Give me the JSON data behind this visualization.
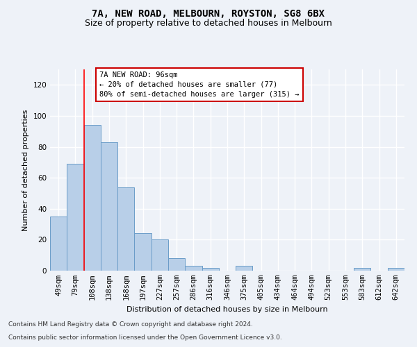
{
  "title": "7A, NEW ROAD, MELBOURN, ROYSTON, SG8 6BX",
  "subtitle": "Size of property relative to detached houses in Melbourn",
  "xlabel": "Distribution of detached houses by size in Melbourn",
  "ylabel": "Number of detached properties",
  "categories": [
    "49sqm",
    "79sqm",
    "108sqm",
    "138sqm",
    "168sqm",
    "197sqm",
    "227sqm",
    "257sqm",
    "286sqm",
    "316sqm",
    "346sqm",
    "375sqm",
    "405sqm",
    "434sqm",
    "464sqm",
    "494sqm",
    "523sqm",
    "553sqm",
    "583sqm",
    "612sqm",
    "642sqm"
  ],
  "values": [
    35,
    69,
    94,
    83,
    54,
    24,
    20,
    8,
    3,
    2,
    0,
    3,
    0,
    0,
    0,
    0,
    0,
    0,
    2,
    0,
    2
  ],
  "bar_color": "#b8cfe8",
  "bar_edge_color": "#6a9cc8",
  "ylim": [
    0,
    130
  ],
  "yticks": [
    0,
    20,
    40,
    60,
    80,
    100,
    120
  ],
  "red_line_x": 1.5,
  "annotation_text": "7A NEW ROAD: 96sqm\n← 20% of detached houses are smaller (77)\n80% of semi-detached houses are larger (315) →",
  "annotation_box_color": "#ffffff",
  "annotation_box_edge": "#cc0000",
  "footer_line1": "Contains HM Land Registry data © Crown copyright and database right 2024.",
  "footer_line2": "Contains public sector information licensed under the Open Government Licence v3.0.",
  "background_color": "#eef2f8",
  "grid_color": "#ffffff",
  "title_fontsize": 10,
  "subtitle_fontsize": 9,
  "axis_label_fontsize": 8,
  "tick_fontsize": 7.5,
  "footer_fontsize": 6.5,
  "annotation_fontsize": 7.5
}
